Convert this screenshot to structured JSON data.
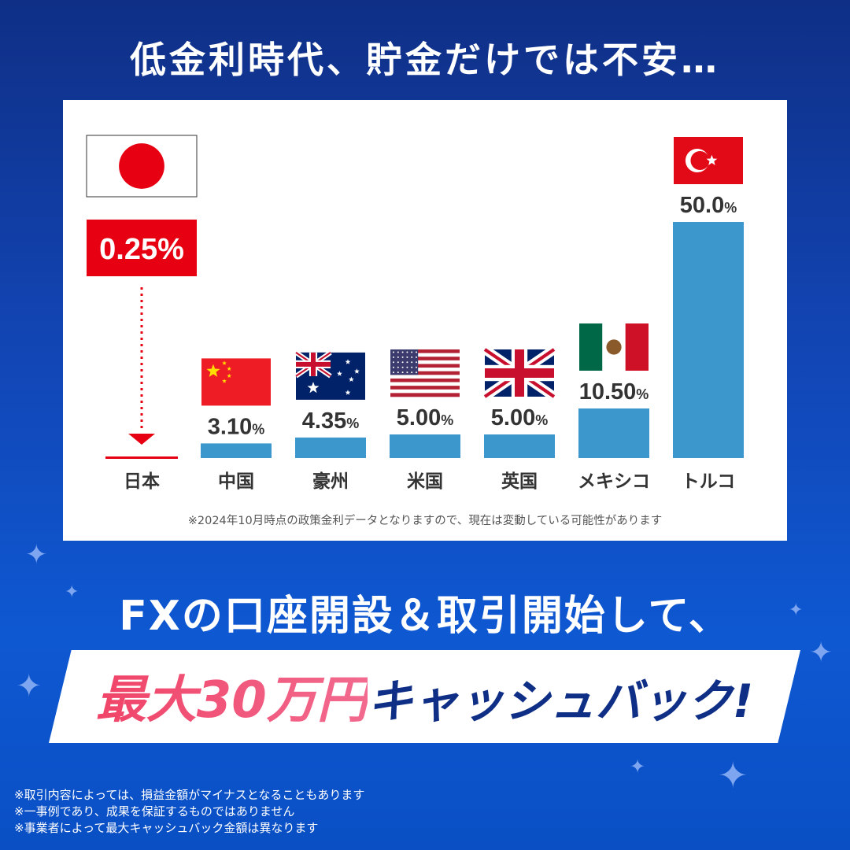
{
  "headline": "低金利時代、貯金だけでは不安…",
  "chart_data": {
    "type": "bar",
    "title": "",
    "xlabel": "",
    "ylabel": "",
    "ylim": [
      0,
      50
    ],
    "categories": [
      "日本",
      "中国",
      "豪州",
      "米国",
      "英国",
      "メキシコ",
      "トルコ"
    ],
    "values": [
      0.25,
      3.1,
      4.35,
      5.0,
      5.0,
      10.5,
      50.0
    ],
    "value_labels": [
      "0.25",
      "3.10",
      "4.35",
      "5.00",
      "5.00",
      "10.50",
      "50.0"
    ],
    "unit": "%",
    "flags": [
      "japan-flag",
      "china-flag",
      "australia-flag",
      "usa-flag",
      "uk-flag",
      "mexico-flag",
      "turkey-flag"
    ],
    "highlight_index": 0,
    "colors": {
      "bar": "#3b97cc",
      "highlight": "#e60012",
      "text": "#333333"
    }
  },
  "chart_note": "※2024年10月時点の政策金利データとなりますので、現在は変動している可能性があります",
  "cta_line1": "FXの口座開設＆取引開始して、",
  "cta_highlight": "最大30万円",
  "cta_rest": "キャッシュバック!",
  "disclaimers": [
    "※取引内容によっては、損益金額がマイナスとなることもあります",
    "※一事例であり、成果を保証するものではありません",
    "※事業者によって最大キャッシュバック金額は異なります"
  ],
  "colors": {
    "background": "#1245b4",
    "accent_pink": "#f04468",
    "navy": "#0f2f86"
  }
}
